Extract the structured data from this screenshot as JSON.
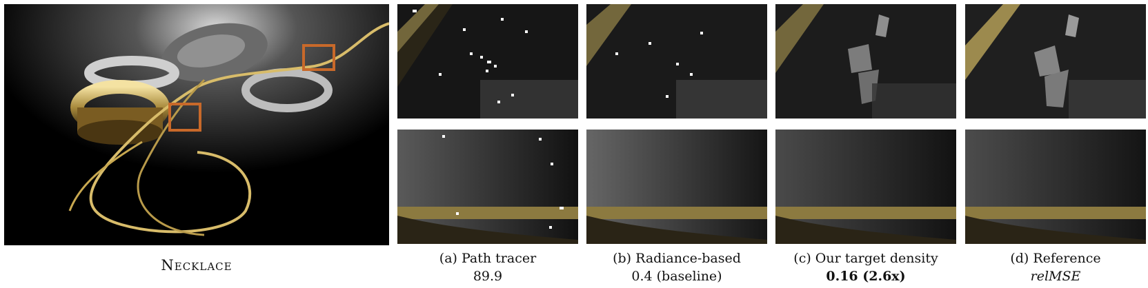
{
  "figure": {
    "scene_name": "Necklace",
    "columns": [
      {
        "label": "(a) Path tracer",
        "value": "89.9",
        "style": "normal"
      },
      {
        "label": "(b) Radiance-based",
        "value": "0.4 (baseline)",
        "style": "normal"
      },
      {
        "label": "(c) Our target density",
        "value": "0.16 (2.6x)",
        "style": "bold"
      },
      {
        "label": "(d) Reference",
        "value": "relMSE",
        "style": "italic"
      }
    ],
    "highlight_color": "#c8692a",
    "gold_color": "#d8bc6a"
  }
}
